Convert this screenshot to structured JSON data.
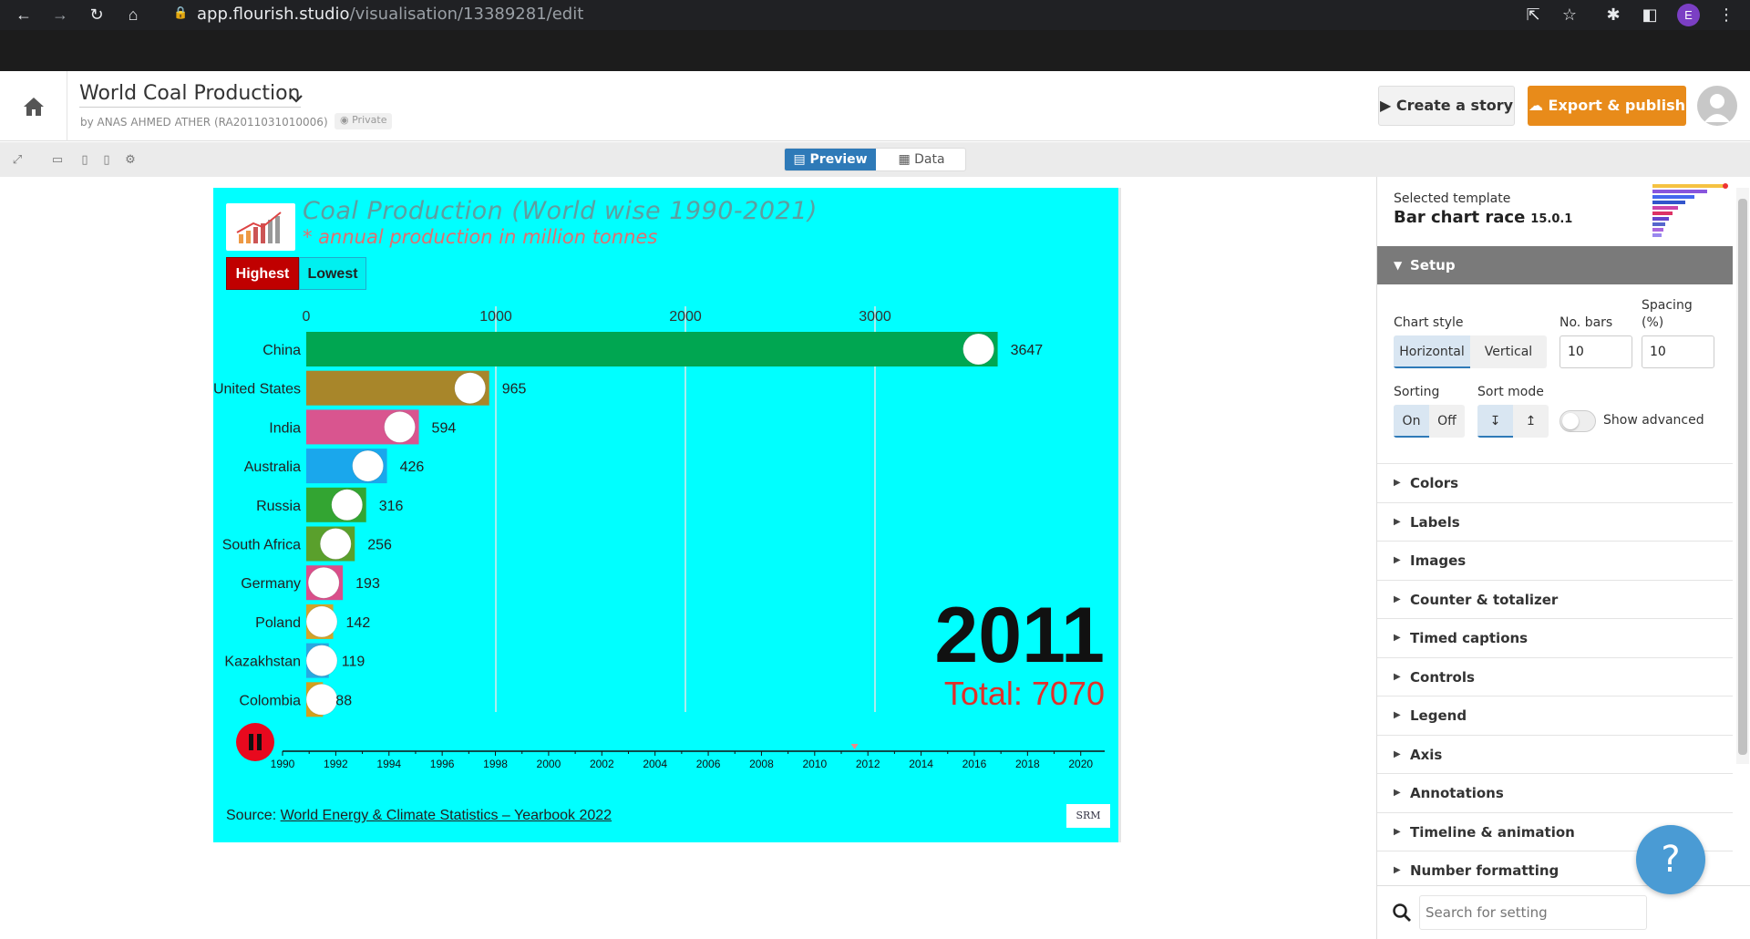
{
  "browser": {
    "url_host": "app.flourish.studio",
    "url_path": "/visualisation/13389281/edit",
    "profile_initial": "E"
  },
  "header": {
    "title": "World Coal Production",
    "author": "by ANAS AHMED ATHER (RA2011031010006)",
    "privacy": "Private",
    "create_story": "Create a story",
    "export": "Export & publish"
  },
  "toolbar": {
    "preview": "Preview",
    "data": "Data"
  },
  "chart": {
    "title": "Coal Production (World wise 1990-2021)",
    "subtitle": "* annual production in million tonnes",
    "btn_highest": "Highest",
    "btn_lowest": "Lowest",
    "year": "2011",
    "total": "Total: 7070",
    "source_prefix": "Source:",
    "source_link": "World Energy & Climate Statistics – Yearbook 2022",
    "srm_logo": "SRM"
  },
  "chart_data": {
    "type": "bar",
    "orientation": "horizontal",
    "categories": [
      "China",
      "United States",
      "India",
      "Australia",
      "Russia",
      "South Africa",
      "Germany",
      "Poland",
      "Kazakhstan",
      "Colombia"
    ],
    "values": [
      3647,
      965,
      594,
      426,
      316,
      256,
      193,
      142,
      119,
      88
    ],
    "colors": [
      "#00a651",
      "#a8862a",
      "#d9558f",
      "#1aa7ec",
      "#33a532",
      "#5aa02c",
      "#d94f8a",
      "#d2a32a",
      "#29a8e0",
      "#d4a01c"
    ],
    "x_ticks": [
      0,
      1000,
      2000,
      3000
    ],
    "xlim": [
      0,
      4000
    ],
    "timeline_years": [
      "1990",
      "1992",
      "1994",
      "1996",
      "1998",
      "2000",
      "2002",
      "2004",
      "2006",
      "2008",
      "2010",
      "2012",
      "2014",
      "2016",
      "2018",
      "2020"
    ],
    "timeline_current": 2011.5
  },
  "panel": {
    "template_label": "Selected template",
    "template_name": "Bar chart race",
    "template_version": "15.0.1",
    "setup": "Setup",
    "chart_style_label": "Chart style",
    "style_horizontal": "Horizontal",
    "style_vertical": "Vertical",
    "no_bars_label": "No. bars",
    "no_bars_value": "10",
    "spacing_label": "Spacing (%)",
    "spacing_value": "10",
    "sorting_label": "Sorting",
    "sorting_on": "On",
    "sorting_off": "Off",
    "sort_mode_label": "Sort mode",
    "show_advanced": "Show advanced",
    "sections": [
      "Colors",
      "Labels",
      "Images",
      "Counter & totalizer",
      "Timed captions",
      "Controls",
      "Legend",
      "Axis",
      "Annotations",
      "Timeline & animation",
      "Number formatting"
    ],
    "search_placeholder": "Search for setting"
  },
  "help": "?"
}
